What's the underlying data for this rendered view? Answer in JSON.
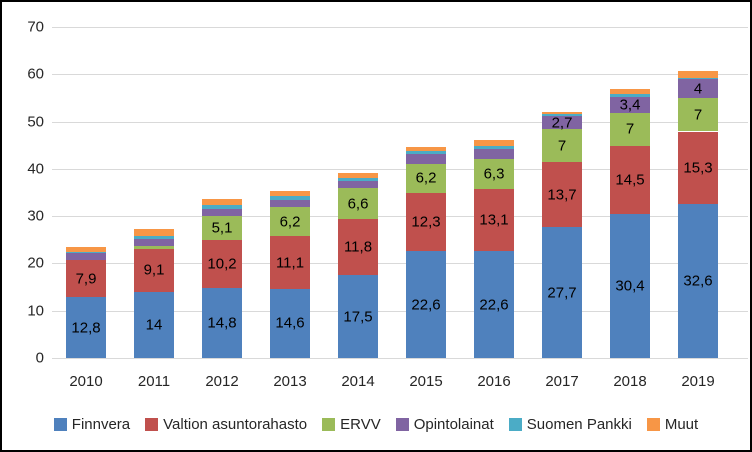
{
  "chart_data": {
    "type": "bar",
    "stacked": true,
    "title": "",
    "xlabel": "",
    "ylabel": "",
    "categories": [
      "2010",
      "2011",
      "2012",
      "2013",
      "2014",
      "2015",
      "2016",
      "2017",
      "2018",
      "2019"
    ],
    "series": [
      {
        "name": "Finnvera",
        "color": "#4F81BD",
        "values": [
          12.8,
          14,
          14.8,
          14.6,
          17.5,
          22.6,
          22.6,
          27.7,
          30.4,
          32.6
        ],
        "labels": [
          "12,8",
          "14",
          "14,8",
          "14,6",
          "17,5",
          "22,6",
          "22,6",
          "27,7",
          "30,4",
          "32,6"
        ]
      },
      {
        "name": "Valtion asuntorahasto",
        "color": "#C0504D",
        "values": [
          7.9,
          9.1,
          10.2,
          11.1,
          11.8,
          12.3,
          13.1,
          13.7,
          14.5,
          15.3
        ],
        "labels": [
          "7,9",
          "9,1",
          "10,2",
          "11,1",
          "11,8",
          "12,3",
          "13,1",
          "13,7",
          "14,5",
          "15,3"
        ]
      },
      {
        "name": "ERVV",
        "color": "#9BBB59",
        "values": [
          0,
          0.5,
          5.1,
          6.2,
          6.6,
          6.2,
          6.3,
          7,
          7,
          7
        ],
        "labels": [
          null,
          null,
          "5,1",
          "6,2",
          "6,6",
          "6,2",
          "6,3",
          "7",
          "7",
          "7"
        ]
      },
      {
        "name": "Opintolainat",
        "color": "#8064A2",
        "values": [
          1.5,
          1.6,
          1.5,
          1.5,
          1.6,
          2.0,
          2.2,
          2.7,
          3.4,
          4
        ],
        "labels": [
          null,
          null,
          null,
          null,
          null,
          null,
          null,
          "2,7",
          "3,4",
          "4"
        ]
      },
      {
        "name": "Suomen Pankki",
        "color": "#4BACC6",
        "values": [
          0.2,
          0.6,
          0.8,
          0.8,
          0.6,
          0.6,
          0.6,
          0.4,
          0.6,
          0.4
        ],
        "labels": [
          null,
          null,
          null,
          null,
          null,
          null,
          null,
          null,
          null,
          null
        ]
      },
      {
        "name": "Muut",
        "color": "#F79646",
        "values": [
          1.1,
          1.5,
          1.3,
          1.2,
          1.0,
          0.9,
          1.3,
          0.6,
          1.0,
          1.3
        ],
        "labels": [
          null,
          null,
          null,
          null,
          null,
          null,
          null,
          null,
          null,
          null
        ]
      }
    ],
    "ylim": [
      0,
      70
    ],
    "y_tick_step": 10,
    "y_tick_labels": [
      "0",
      "10",
      "20",
      "30",
      "40",
      "50",
      "60",
      "70"
    ],
    "grid": true,
    "legend_position": "bottom",
    "colors": {
      "gridline": "#d9d9d9",
      "axis_text": "#262626",
      "data_label": "#000000",
      "frame_border": "#000000",
      "background": "#ffffff"
    }
  }
}
